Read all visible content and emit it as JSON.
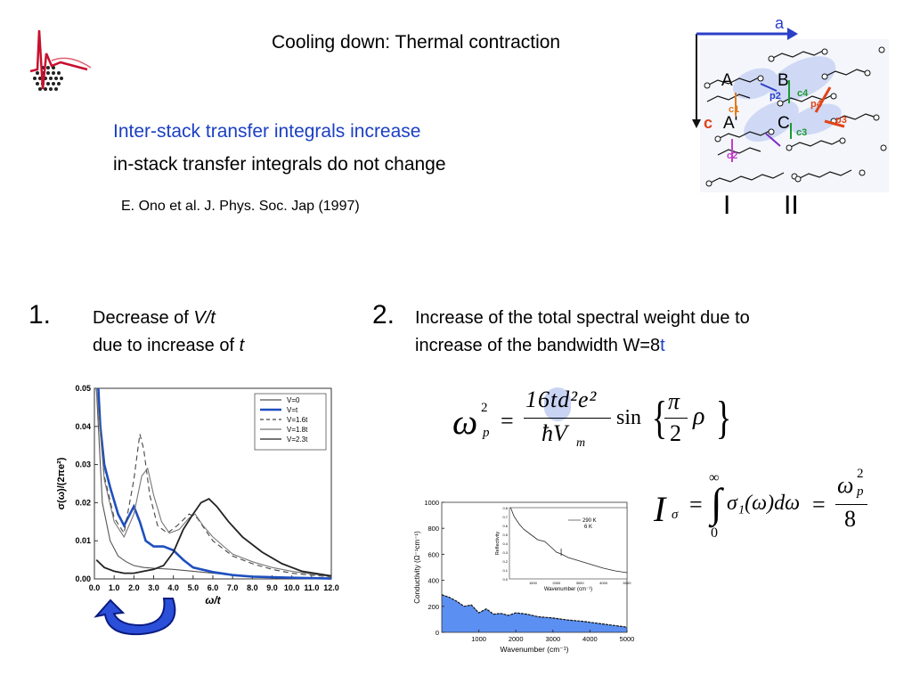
{
  "slide": {
    "title": "Cooling down: Thermal contraction",
    "line1": "Inter-stack transfer integrals increase",
    "line2": "in-stack transfer integrals do not change",
    "reference": "E. Ono et al. J. Phys. Soc. Jap (1997)"
  },
  "crystal": {
    "axis_label": "a",
    "site_labels": [
      "A",
      "B",
      "A'",
      "C"
    ],
    "axis_c_label": "c",
    "bond_labels": [
      "p2",
      "c4",
      "p4",
      "c1",
      "c3",
      "p3",
      "c2"
    ],
    "stack_labels": [
      "I",
      "II"
    ]
  },
  "point1": {
    "number": "1.",
    "text_a": "Decrease of ",
    "text_a_em": "V/t",
    "text_b": "due to increase of ",
    "text_b_em": "t"
  },
  "point2": {
    "number": "2.",
    "line_a": "Increase of the total spectral weight due to",
    "line_b": "increase of the bandwidth W=8",
    "line_b_em": "t"
  },
  "chart_left": {
    "type": "line",
    "ylabel": "σ(ω)/(2πe²)",
    "xlabel": "ω/t",
    "xlim": [
      0,
      12
    ],
    "ylim": [
      0,
      0.05
    ],
    "xticks": [
      "0.0",
      "1.0",
      "2.0",
      "3.0",
      "4.0",
      "5.0",
      "6.0",
      "7.0",
      "8.0",
      "9.0",
      "10.0",
      "11.0",
      "12.0"
    ],
    "yticks": [
      "0.00",
      "0.01",
      "0.02",
      "0.03",
      "0.04",
      "0.05"
    ],
    "legend": [
      "V=0",
      "V=t",
      "V=1.6t",
      "V=1.8t",
      "V=2.3t"
    ],
    "legend_position": "top-right",
    "series": [
      {
        "name": "V=0",
        "color": "#555555",
        "dash": "",
        "x": [
          0.1,
          0.4,
          0.8,
          1.2,
          1.6,
          2.0,
          2.5,
          3.0,
          4.0,
          5.0,
          6.0,
          7.0,
          8.0,
          9.0,
          10.0,
          11.0,
          12.0
        ],
        "y": [
          0.05,
          0.02,
          0.01,
          0.006,
          0.0045,
          0.0035,
          0.003,
          0.0028,
          0.0025,
          0.002,
          0.0015,
          0.001,
          0.0007,
          0.0005,
          0.0003,
          0.0002,
          0.0001
        ]
      },
      {
        "name": "V=t",
        "color": "#1f4fbf",
        "dash": "",
        "x": [
          0.2,
          0.3,
          0.5,
          0.8,
          1.2,
          1.5,
          1.8,
          2.0,
          2.3,
          2.6,
          3.0,
          3.5,
          4.0,
          4.5,
          5.0,
          6.0,
          7.0,
          8.0,
          10.0,
          12.0
        ],
        "y": [
          0.05,
          0.04,
          0.03,
          0.024,
          0.017,
          0.014,
          0.017,
          0.019,
          0.015,
          0.01,
          0.0085,
          0.0085,
          0.0075,
          0.005,
          0.003,
          0.0018,
          0.001,
          0.0006,
          0.0003,
          0.0001
        ]
      },
      {
        "name": "V=1.6t",
        "color": "#444444",
        "dash": "6,4",
        "x": [
          0.1,
          0.5,
          1.0,
          1.5,
          2.0,
          2.3,
          2.5,
          2.8,
          3.2,
          3.7,
          4.2,
          4.8,
          5.2,
          5.6,
          6.0,
          7.0,
          8.0,
          9.0,
          10.0,
          12.0
        ],
        "y": [
          0.05,
          0.027,
          0.016,
          0.012,
          0.026,
          0.038,
          0.034,
          0.022,
          0.014,
          0.012,
          0.014,
          0.017,
          0.016,
          0.013,
          0.01,
          0.006,
          0.004,
          0.0025,
          0.0015,
          0.0005
        ]
      },
      {
        "name": "V=1.8t",
        "color": "#777777",
        "dash": "",
        "x": [
          0.1,
          0.5,
          1.0,
          1.5,
          2.0,
          2.4,
          2.7,
          3.0,
          3.4,
          3.8,
          4.3,
          4.8,
          5.1,
          5.5,
          6.0,
          7.0,
          8.0,
          9.0,
          10.0,
          12.0
        ],
        "y": [
          0.05,
          0.026,
          0.015,
          0.011,
          0.017,
          0.027,
          0.029,
          0.022,
          0.015,
          0.012,
          0.013,
          0.016,
          0.017,
          0.014,
          0.011,
          0.0065,
          0.0045,
          0.003,
          0.002,
          0.0006
        ]
      },
      {
        "name": "V=2.3t",
        "color": "#222222",
        "dash": "",
        "x": [
          0.1,
          0.5,
          1.0,
          1.5,
          2.0,
          2.5,
          3.0,
          3.5,
          4.0,
          4.5,
          5.0,
          5.4,
          5.8,
          6.2,
          6.8,
          7.5,
          8.5,
          9.5,
          10.5,
          12.0
        ],
        "y": [
          0.005,
          0.003,
          0.002,
          0.0015,
          0.0015,
          0.002,
          0.0025,
          0.0035,
          0.007,
          0.013,
          0.017,
          0.02,
          0.021,
          0.019,
          0.015,
          0.011,
          0.007,
          0.004,
          0.002,
          0.0008
        ]
      }
    ]
  },
  "chart_right": {
    "type": "area",
    "ylabel": "Conductivity (Ω⁻¹cm⁻¹)",
    "xlabel": "Wavenumber (cm⁻¹)",
    "xlim": [
      0,
      5000
    ],
    "ylim": [
      0,
      1000
    ],
    "xticks": [
      "1000",
      "2000",
      "3000",
      "4000",
      "5000"
    ],
    "yticks": [
      "0",
      "200",
      "400",
      "600",
      "800",
      "1000"
    ],
    "fill_color": "#5b8ff2",
    "x": [
      0,
      200,
      400,
      600,
      800,
      1000,
      1200,
      1400,
      1600,
      1800,
      2000,
      2300,
      2600,
      3000,
      3400,
      3800,
      4200,
      4600,
      5000
    ],
    "y": [
      290,
      270,
      240,
      200,
      210,
      150,
      180,
      140,
      145,
      130,
      150,
      140,
      120,
      110,
      95,
      85,
      70,
      55,
      40
    ],
    "inset": {
      "ylabel": "Reflectivity",
      "xlabel": "Wavenumber (cm⁻¹)",
      "legend": [
        "290 K",
        "6 K"
      ],
      "xticks": [
        "1000",
        "2000",
        "3000",
        "4000",
        "5000"
      ],
      "yticks": [
        "0.0",
        "0.1",
        "0.2",
        "0.3",
        "0.4",
        "0.5",
        "0.6",
        "0.7",
        "0.8"
      ],
      "xlim": [
        0,
        5000
      ],
      "ylim": [
        0,
        0.8
      ],
      "x": [
        50,
        200,
        400,
        600,
        800,
        1000,
        1200,
        1500,
        1800,
        2000,
        2200,
        2500,
        3000,
        3500,
        4000,
        4500,
        5000
      ],
      "y": [
        0.8,
        0.7,
        0.62,
        0.56,
        0.52,
        0.48,
        0.44,
        0.42,
        0.35,
        0.3,
        0.28,
        0.24,
        0.2,
        0.16,
        0.12,
        0.09,
        0.07
      ]
    }
  },
  "formulas": {
    "wp_lhs": "ω",
    "wp_sup": "2",
    "wp_sub": "p",
    "wp_num": "16td²e²",
    "wp_den": "ħV",
    "wp_den_sub": "m",
    "wp_fn": "sin",
    "wp_pi": "π",
    "wp_two": "2",
    "wp_rho": "ρ",
    "I_lhs": "I",
    "I_sub": "σ",
    "I_upper": "∞",
    "I_lower": "0",
    "I_integrand": "σ₁(ω)dω",
    "I_num": "ω",
    "I_num_sup": "2",
    "I_num_sub": "p",
    "I_den": "8"
  }
}
